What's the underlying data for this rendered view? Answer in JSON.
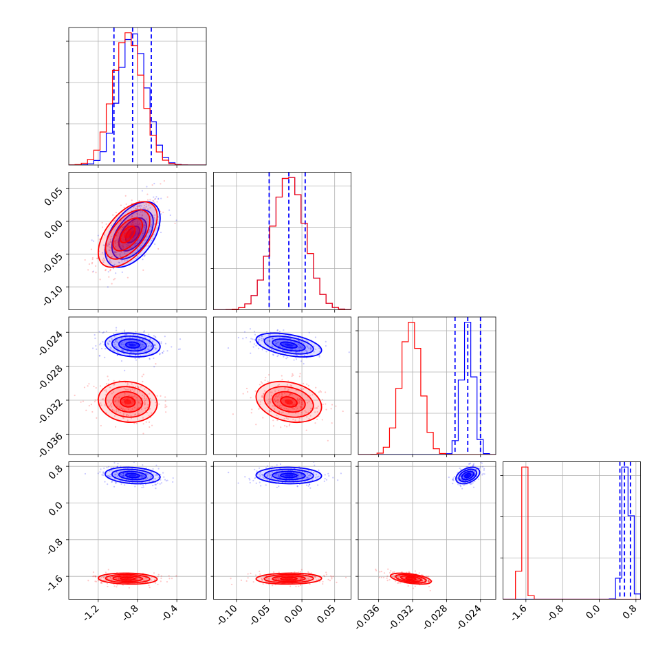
{
  "chart_data": {
    "type": "corner",
    "colors": {
      "series_a": "#0000ff",
      "series_b": "#ff0000"
    },
    "grid": true,
    "parameters": [
      {
        "range": [
          -1.5,
          -0.1
        ],
        "ticks": [
          "-1.2",
          "-0.8",
          "-0.4"
        ],
        "tick_values": [
          -1.2,
          -0.8,
          -0.4
        ]
      },
      {
        "range": [
          -0.135,
          0.075
        ],
        "ticks": [
          "-0.10",
          "-0.05",
          "0.00",
          "0.05"
        ],
        "tick_values": [
          -0.1,
          -0.05,
          0.0,
          0.05
        ]
      },
      {
        "range": [
          -0.0384,
          -0.0222
        ],
        "ticks": [
          "-0.036",
          "-0.032",
          "-0.028",
          "-0.024"
        ],
        "tick_values": [
          -0.036,
          -0.032,
          -0.028,
          -0.024
        ]
      },
      {
        "range": [
          -2.1,
          0.9
        ],
        "ticks": [
          "-1.6",
          "-0.8",
          "0.0",
          "0.8"
        ],
        "tick_values": [
          -1.6,
          -0.8,
          0.0,
          0.8
        ]
      }
    ],
    "series": [
      {
        "key": "series_a",
        "center": [
          -0.85,
          -0.02,
          -0.0255,
          0.6
        ],
        "sigma": [
          0.14,
          0.025,
          0.0007,
          0.09
        ],
        "quantiles": [
          [
            -1.04,
            -0.85,
            -0.66
          ],
          [
            -0.05,
            -0.02,
            0.005
          ],
          [
            -0.027,
            -0.0255,
            -0.024
          ],
          [
            0.45,
            0.55,
            0.68
          ]
        ],
        "corr": {
          "0-1": 0.5,
          "0-2": -0.15,
          "0-3": -0.2,
          "1-2": -0.45,
          "1-3": -0.05,
          "2-3": 0.4
        }
      },
      {
        "key": "series_b",
        "center": [
          -0.9,
          -0.02,
          -0.0322,
          -1.65
        ],
        "sigma": [
          0.15,
          0.025,
          0.0012,
          0.06
        ],
        "quantiles": [],
        "corr": {
          "0-1": 0.55,
          "0-2": -0.1,
          "0-3": -0.1,
          "1-2": -0.25,
          "1-3": 0.05,
          "2-3": -0.5
        }
      }
    ]
  }
}
